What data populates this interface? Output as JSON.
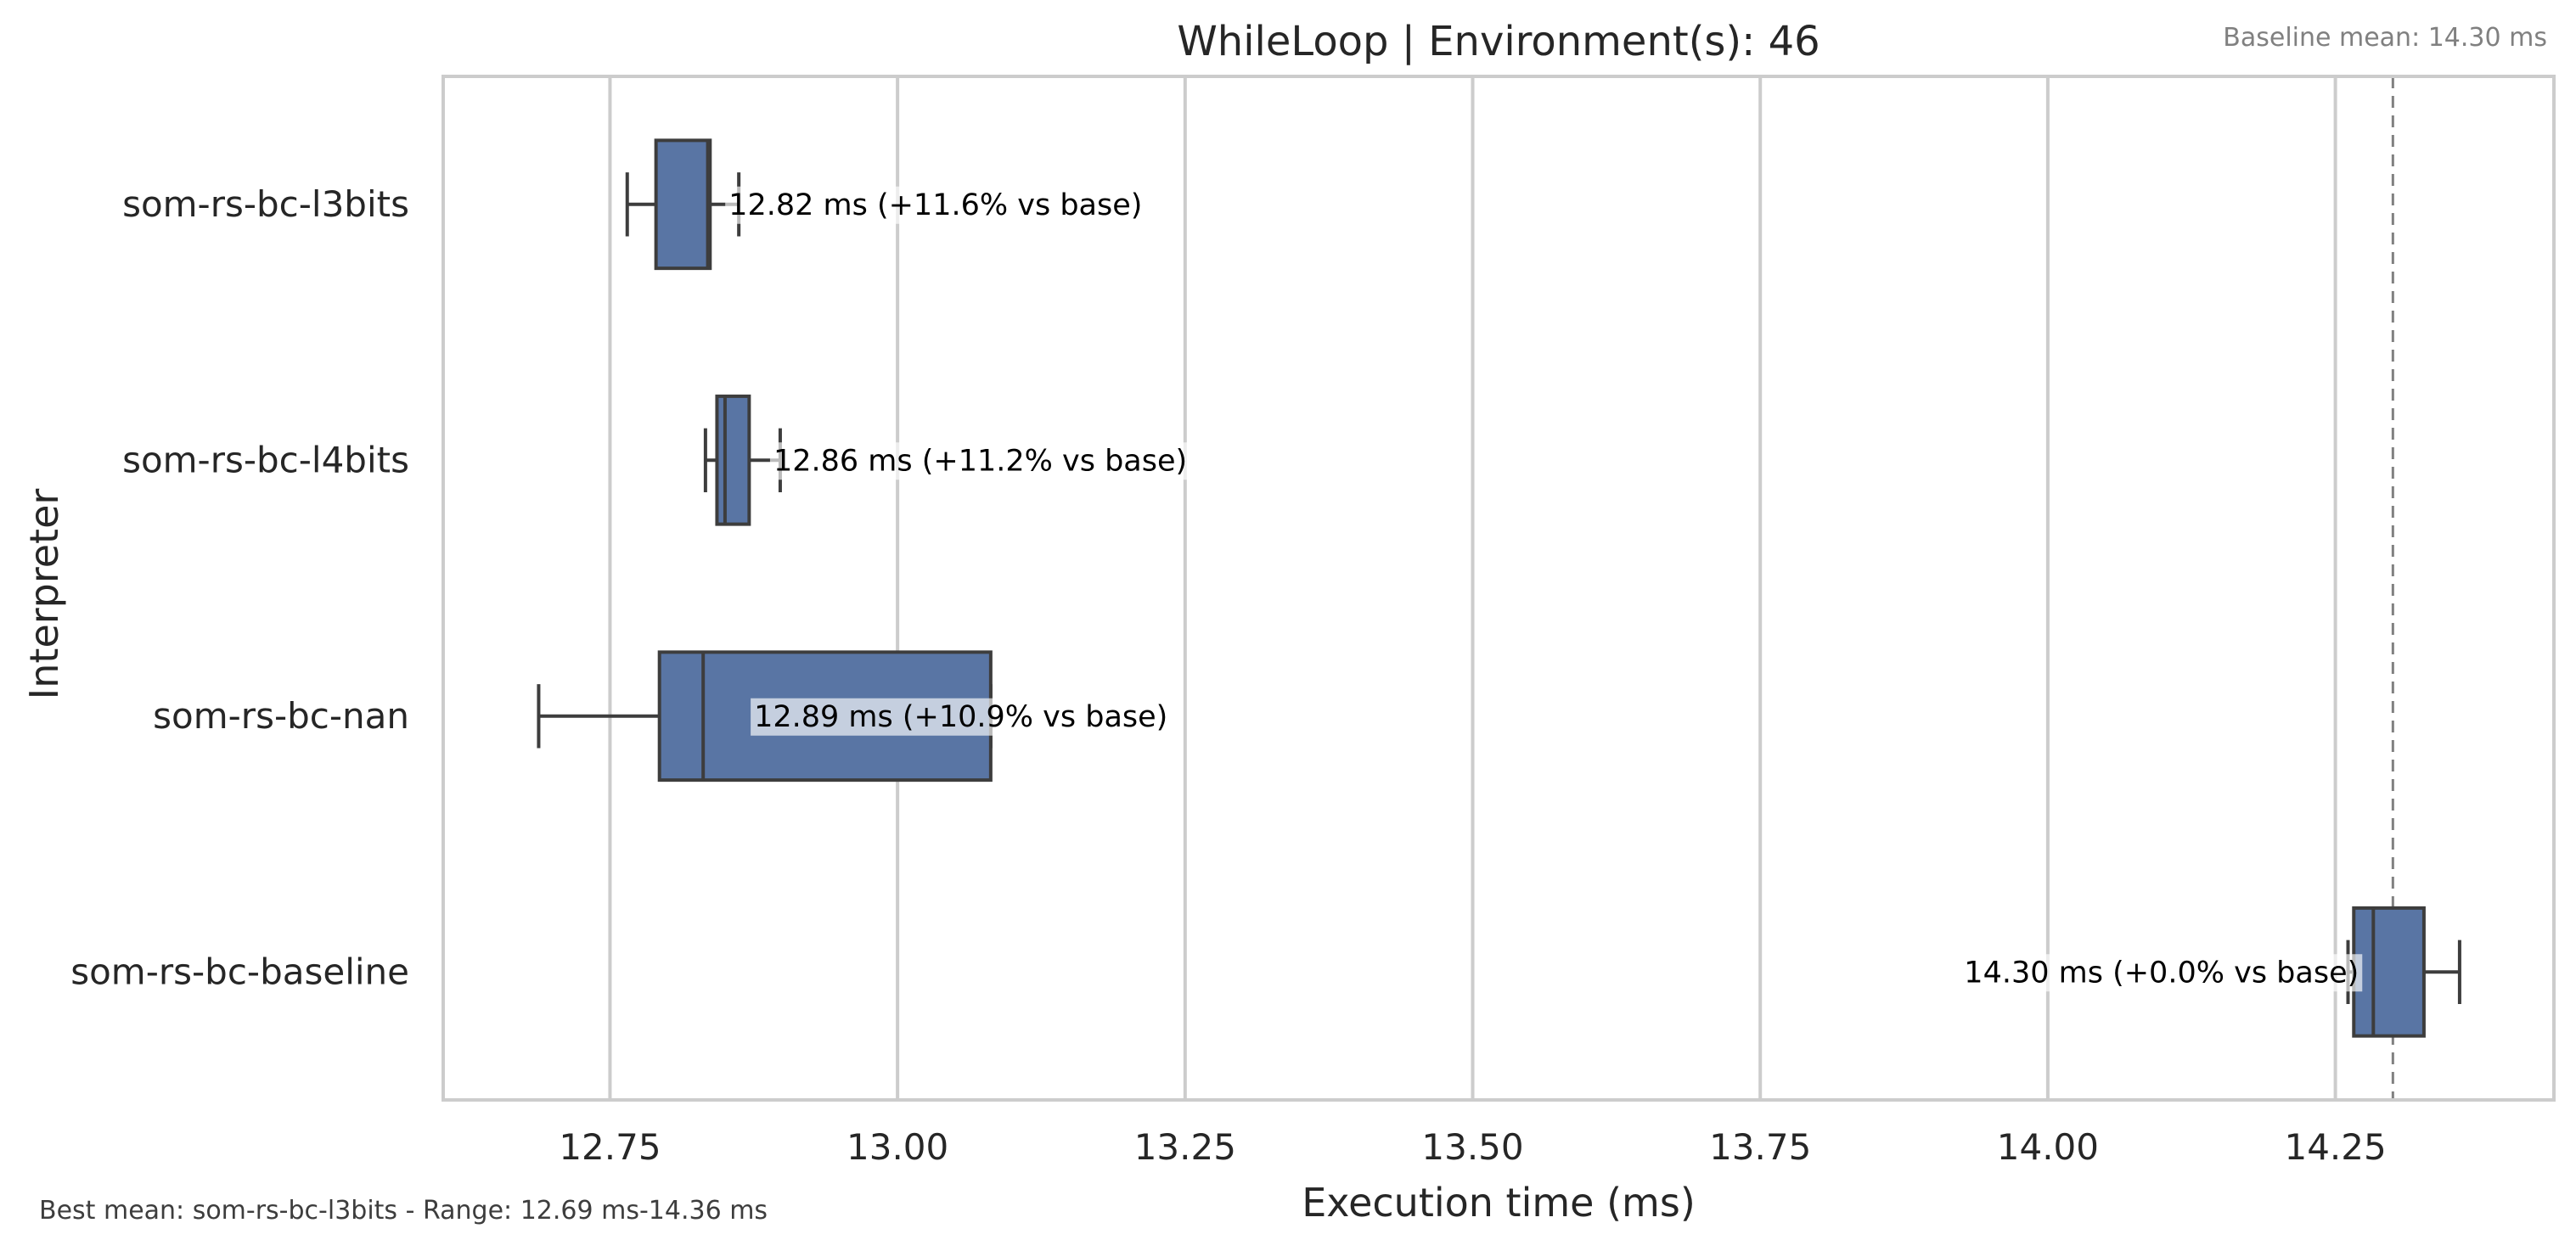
{
  "chart_data": {
    "type": "boxplot",
    "orientation": "horizontal",
    "title": "WhileLoop | Environment(s): 46",
    "xlabel": "Execution time (ms)",
    "ylabel": "Interpreter",
    "xlim": [
      12.605,
      14.44
    ],
    "xticks": [
      "12.75",
      "13.00",
      "13.25",
      "13.50",
      "13.75",
      "14.00",
      "14.25"
    ],
    "grid": true,
    "box_color": "#5975a4",
    "edge_color": "#3d3d3d",
    "baseline_mean": 14.3,
    "baseline_note": "Baseline mean: 14.30 ms",
    "footer": "Best mean: som-rs-bc-l3bits - Range: 12.69 ms-14.36 ms",
    "categories": [
      "som-rs-bc-l3bits",
      "som-rs-bc-l4bits",
      "som-rs-bc-nan",
      "som-rs-bc-baseline"
    ],
    "boxes": [
      {
        "name": "som-rs-bc-l3bits",
        "whisker_low": 12.765,
        "q1": 12.79,
        "median": 12.835,
        "q3": 12.837,
        "whisker_high": 12.862,
        "annotation": "12.82 ms  (+11.6% vs base)"
      },
      {
        "name": "som-rs-bc-l4bits",
        "whisker_low": 12.833,
        "q1": 12.843,
        "median": 12.85,
        "q3": 12.871,
        "whisker_high": 12.898,
        "annotation": "12.86 ms  (+11.2% vs base)"
      },
      {
        "name": "som-rs-bc-nan",
        "whisker_low": 12.688,
        "q1": 12.793,
        "median": 12.831,
        "q3": 13.081,
        "whisker_high": 13.081,
        "annotation": "12.89 ms  (+10.9% vs base)"
      },
      {
        "name": "som-rs-bc-baseline",
        "whisker_low": 14.261,
        "q1": 14.266,
        "median": 14.283,
        "q3": 14.327,
        "whisker_high": 14.358,
        "annotation": "14.30 ms  (+0.0% vs base)"
      }
    ]
  }
}
